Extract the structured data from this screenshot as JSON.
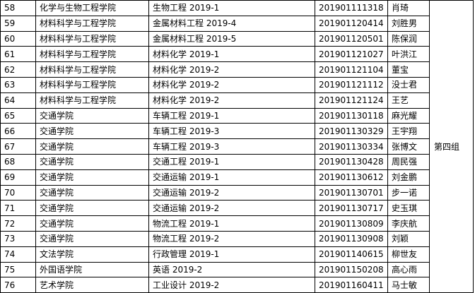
{
  "table": {
    "rows": [
      [
        "58",
        "化学与生物工程学院",
        "生物工程 2019-1",
        "201901111318",
        "肖琦"
      ],
      [
        "59",
        "材料科学与工程学院",
        "金属材料工程 2019-4",
        "201901120414",
        "刘胜男"
      ],
      [
        "60",
        "材料科学与工程学院",
        "金属材料工程 2019-5",
        "201901120501",
        "陈保润"
      ],
      [
        "61",
        "材料科学与工程学院",
        "材料化学 2019-1",
        "201901121027",
        "叶洪江"
      ],
      [
        "62",
        "材料科学与工程学院",
        "材料化学 2019-2",
        "201901121104",
        "董宝"
      ],
      [
        "63",
        "材料科学与工程学院",
        "材料化学 2019-2",
        "201901121112",
        "没士君"
      ],
      [
        "64",
        "材料科学与工程学院",
        "材料化学 2019-2",
        "201901121124",
        "王艺"
      ],
      [
        "65",
        "交通学院",
        "车辆工程 2019-1",
        "201901130118",
        "麻光耀"
      ],
      [
        "66",
        "交通学院",
        "车辆工程 2019-3",
        "201901130329",
        "王宇翔"
      ],
      [
        "67",
        "交通学院",
        "车辆工程 2019-3",
        "201901130334",
        "张博文"
      ],
      [
        "68",
        "交通学院",
        "交通工程 2019-1",
        "201901130428",
        "周民强"
      ],
      [
        "69",
        "交通学院",
        "交通运输 2019-1",
        "201901130612",
        "刘金鹏"
      ],
      [
        "70",
        "交通学院",
        "交通运输 2019-2",
        "201901130701",
        "步一诺"
      ],
      [
        "71",
        "交通学院",
        "交通运输 2019-2",
        "201901130717",
        "史玉琪"
      ],
      [
        "72",
        "交通学院",
        "物流工程 2019-1",
        "201901130809",
        "李庆航"
      ],
      [
        "73",
        "交通学院",
        "物流工程 2019-2",
        "201901130908",
        "刘颖"
      ],
      [
        "74",
        "文法学院",
        "行政管理 2019-1",
        "201901140615",
        "柳世友"
      ],
      [
        "75",
        "外国语学院",
        "英语 2019-2",
        "201901150208",
        "高心雨"
      ],
      [
        "76",
        "艺术学院",
        "工业设计 2019-2",
        "201901160411",
        "马士敏"
      ]
    ],
    "group": "第四组"
  }
}
